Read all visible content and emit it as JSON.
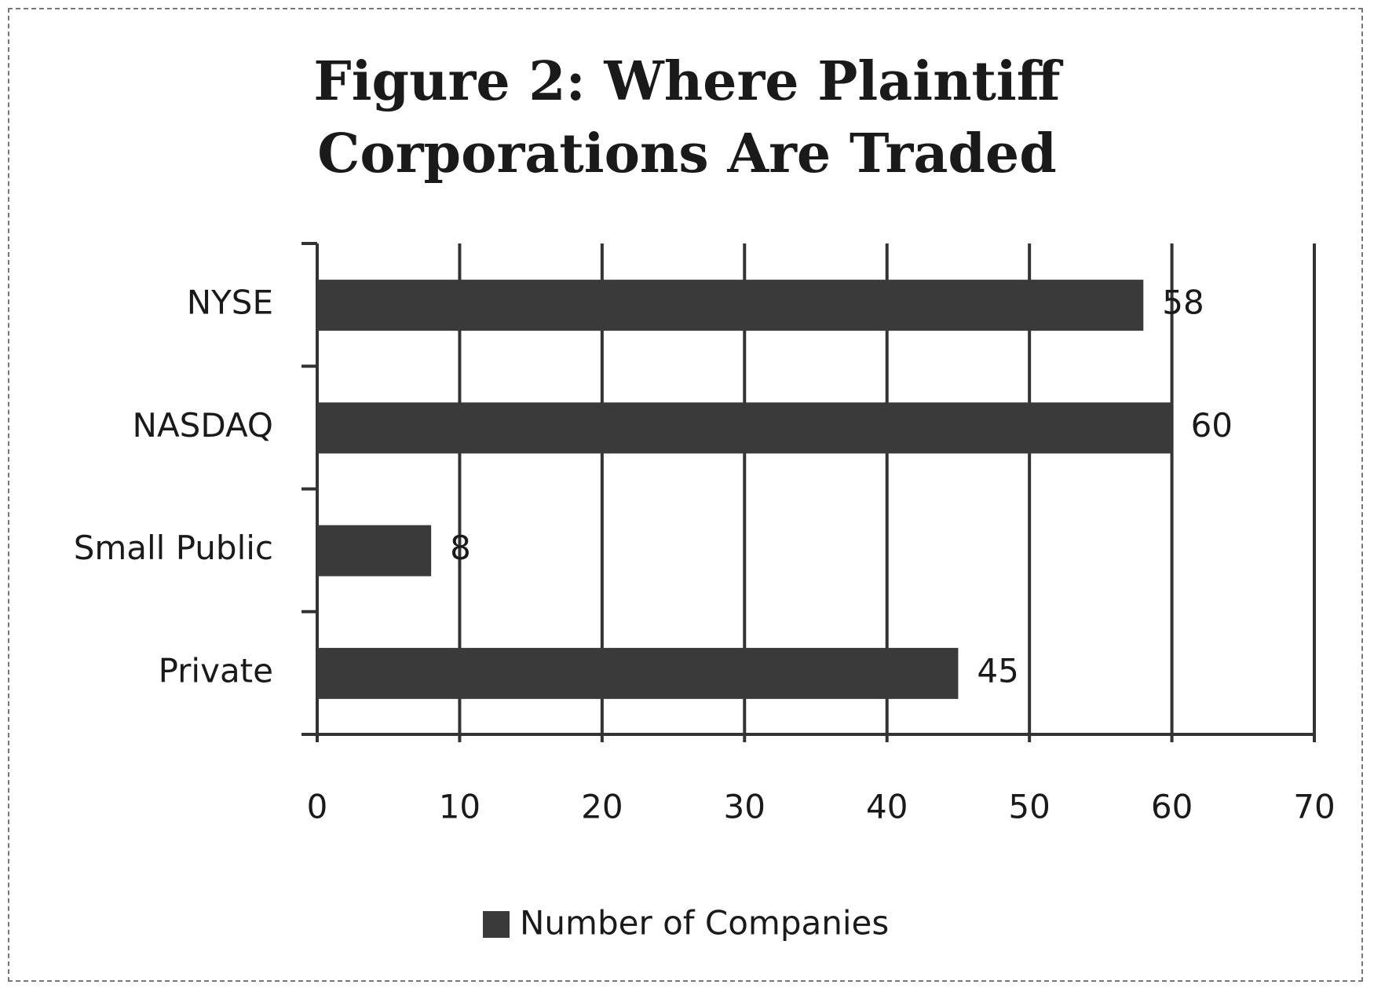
{
  "chart_data": {
    "type": "hbar",
    "title": "Figure 2: Where Plaintiff Corporations Are Traded",
    "categories": [
      "NYSE",
      "NASDAQ",
      "Small Public",
      "Private"
    ],
    "series": [
      {
        "name": "Number of Companies",
        "color": "#3a3a3a",
        "values": [
          58,
          60,
          8,
          45
        ]
      }
    ],
    "xlim": [
      0,
      70
    ],
    "xticks": [
      0,
      10,
      20,
      30,
      40,
      50,
      60,
      70
    ],
    "grid": true,
    "legend": "bottom"
  }
}
